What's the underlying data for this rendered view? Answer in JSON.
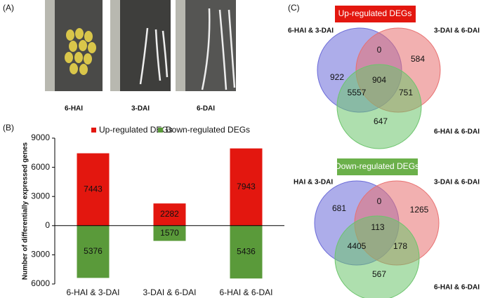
{
  "panel_a": {
    "label": "(A)",
    "captions": [
      "6-HAI",
      "3-DAI",
      "6-DAI"
    ]
  },
  "chart_data": {
    "type": "bar",
    "label": "(B)",
    "ylabel": "Number of differentially expressed genes",
    "categories": [
      "6-HAI & 3-DAI",
      "3-DAI & 6-DAI",
      "6-HAI & 6-DAI"
    ],
    "series": [
      {
        "name": "Up-regulated DEGs",
        "color": "#e3170f",
        "values": [
          7443,
          2282,
          7943
        ]
      },
      {
        "name": "Down-regulated DEGs",
        "color": "#5a9a3a",
        "values": [
          -5376,
          -1570,
          -5436
        ],
        "value_labels": [
          "5376",
          "1570",
          "5436"
        ]
      }
    ],
    "ylim": [
      -6000,
      9000
    ],
    "yticks": [
      9000,
      6000,
      3000,
      0,
      {
        "value": -3000,
        "label": "3000"
      },
      {
        "value": -6000,
        "label": "6000"
      }
    ],
    "legend": "top"
  },
  "panel_c": {
    "label": "(C)",
    "venns": [
      {
        "title": "Up-regulated DEGs",
        "title_color": "#e3170f",
        "sets": [
          "6-HAI & 3-DAI",
          "3-DAI & 6-DAI",
          "6-HAI & 6-DAI"
        ],
        "regions": [
          "922",
          "0",
          "584",
          "904",
          "5557",
          "751",
          "647"
        ]
      },
      {
        "title": "Down-regulated DEGs",
        "title_color": "#6bb04a",
        "sets": [
          "HAI & 3-DAI",
          "3-DAI & 6-DAI",
          "6-HAI & 6-DAI"
        ],
        "regions": [
          "681",
          "0",
          "1265",
          "113",
          "4405",
          "178",
          "567"
        ]
      }
    ]
  }
}
